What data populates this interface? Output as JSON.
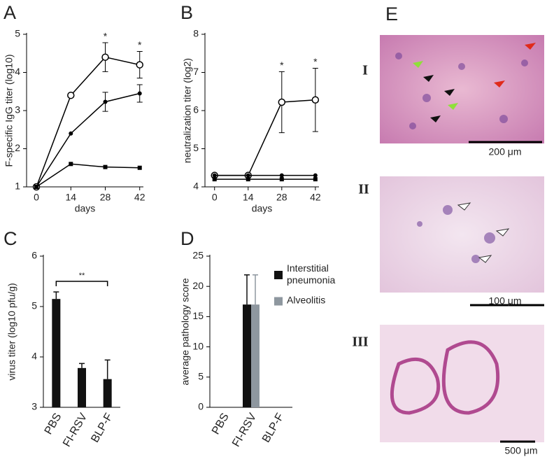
{
  "chart_data": [
    {
      "type": "line",
      "panel_label": "A",
      "xlabel": "days",
      "ylabel": "F-specific IgG titer (log10)",
      "x": [
        0,
        14,
        28,
        42
      ],
      "xlim": [
        -4,
        43.5
      ],
      "xticks": [
        0,
        14,
        28,
        42
      ],
      "ylim": [
        1,
        5
      ],
      "yticks": [
        1,
        2,
        3,
        4,
        5
      ],
      "series": [
        {
          "marker": "open-circle",
          "color": "#000000",
          "values": [
            1,
            3.4,
            4.4,
            4.2
          ],
          "errors": [
            null,
            null,
            0.38,
            0.35
          ]
        },
        {
          "marker": "filled-circle",
          "color": "#000000",
          "values": [
            1,
            2.4,
            3.23,
            3.45
          ],
          "errors": [
            null,
            null,
            0.25,
            0.23
          ]
        },
        {
          "marker": "square",
          "color": "#000000",
          "values": [
            1,
            1.6,
            1.52,
            1.5
          ],
          "errors": [
            null,
            null,
            null,
            null
          ]
        }
      ],
      "annotations": [
        {
          "text": "*",
          "x": 28
        },
        {
          "text": "*",
          "x": 42
        }
      ]
    },
    {
      "type": "line",
      "panel_label": "B",
      "xlabel": "days",
      "ylabel": "neutralization titer (log2)",
      "x": [
        0,
        14,
        28,
        42
      ],
      "xlim": [
        -4,
        43.5
      ],
      "xticks": [
        0,
        14,
        28,
        42
      ],
      "ylim": [
        4,
        8
      ],
      "yticks": [
        4,
        5,
        6,
        7,
        8
      ],
      "series": [
        {
          "marker": "open-circle",
          "color": "#000000",
          "values": [
            4.3,
            4.3,
            6.22,
            6.28
          ],
          "errors": [
            null,
            null,
            0.8,
            0.83
          ]
        },
        {
          "marker": "filled-circle",
          "color": "#000000",
          "values": [
            4.3,
            4.3,
            4.3,
            4.3
          ],
          "errors": [
            null,
            null,
            null,
            null
          ]
        },
        {
          "marker": "square",
          "color": "#000000",
          "values": [
            4.2,
            4.2,
            4.2,
            4.2
          ],
          "errors": [
            null,
            null,
            null,
            null
          ]
        }
      ],
      "annotations": [
        {
          "text": "*",
          "x": 28
        },
        {
          "text": "*",
          "x": 42
        }
      ]
    },
    {
      "type": "bar",
      "panel_label": "C",
      "ylabel": "virus titer (log10 pfu/g)",
      "categories": [
        "PBS",
        "FI-RSV",
        "BLP-F"
      ],
      "ylim": [
        3,
        6
      ],
      "yticks": [
        3,
        4,
        5,
        6
      ],
      "series": [
        {
          "color": "#111111",
          "values": [
            5.15,
            3.78,
            3.56
          ],
          "errors": [
            0.14,
            0.09,
            0.38
          ]
        }
      ],
      "significance": {
        "text": "**"
      }
    },
    {
      "type": "bar",
      "panel_label": "D",
      "ylabel": "average pathology score",
      "categories": [
        "PBS",
        "FI-RSV",
        "BLP-F"
      ],
      "ylim": [
        0,
        25
      ],
      "yticks": [
        0,
        5,
        10,
        15,
        20,
        25
      ],
      "series": [
        {
          "name": "Interstitial pneumonia",
          "color": "#111111",
          "values": [
            0,
            17,
            0
          ],
          "errors": [
            null,
            4.9,
            null
          ]
        },
        {
          "name": "Alveolitis",
          "color": "#8e979f",
          "values": [
            0,
            17,
            0
          ],
          "errors": [
            null,
            4.9,
            null
          ]
        }
      ]
    }
  ],
  "panel_e": {
    "label": "E",
    "images": [
      {
        "label": "I",
        "scale": "200 μm"
      },
      {
        "label": "II",
        "scale": "100 μm"
      },
      {
        "label": "III",
        "scale": "500 μm"
      }
    ]
  }
}
